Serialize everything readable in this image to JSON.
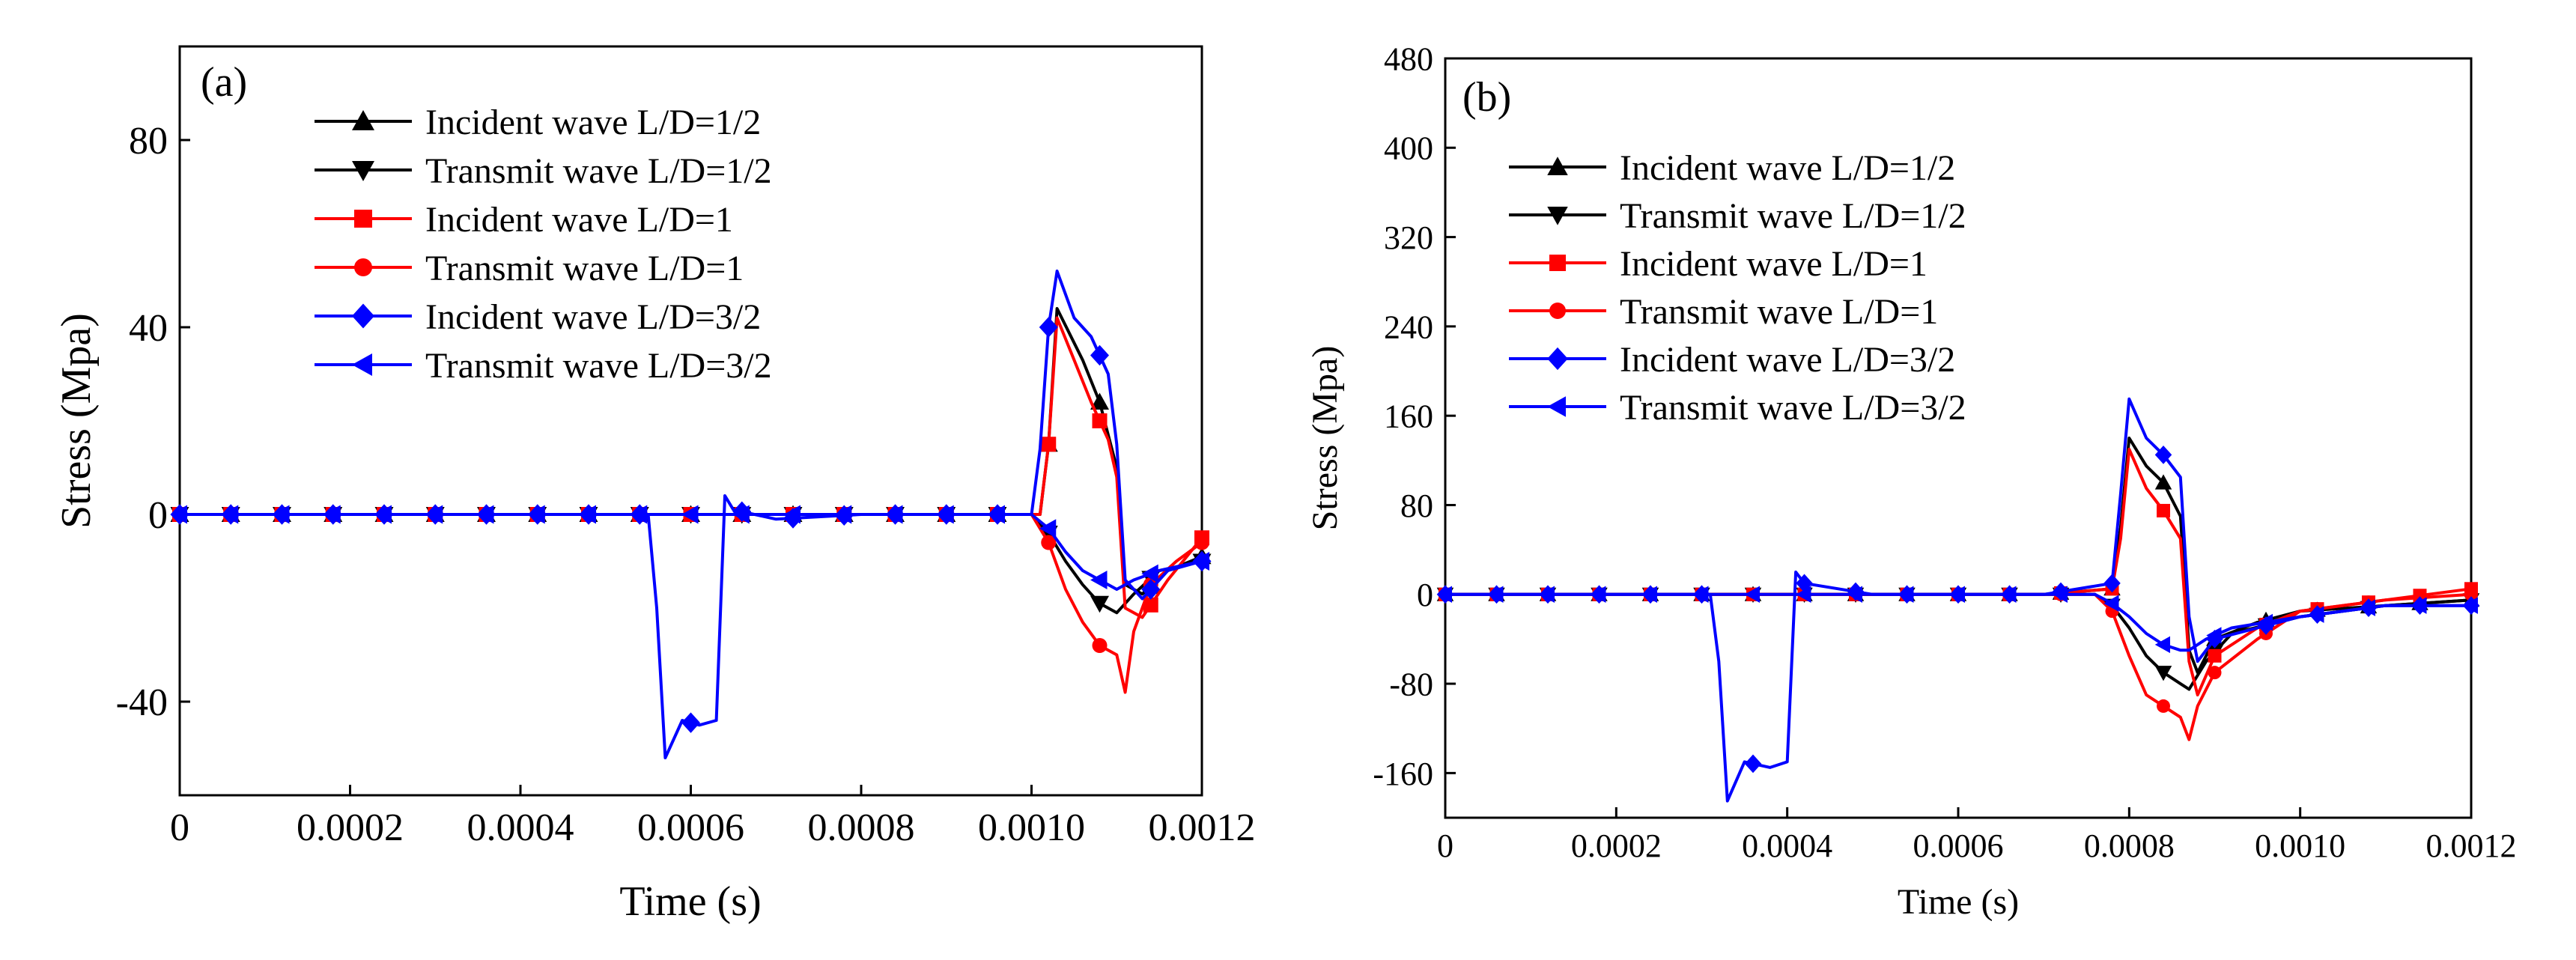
{
  "chart_data": [
    {
      "type": "line",
      "panel_label": "(a)",
      "xlabel": "Time (s)",
      "ylabel": "Stress (Mpa)",
      "xlim": [
        0,
        0.0012
      ],
      "ylim": [
        -60,
        100
      ],
      "xticks": [
        0,
        0.0002,
        0.0004,
        0.0006,
        0.0008,
        0.001,
        0.0012
      ],
      "xtick_labels": [
        "0",
        "0.0002",
        "0.0004",
        "0.0006",
        "0.0008",
        "0.0010",
        "0.0012"
      ],
      "yticks": [
        -40,
        0,
        40,
        80
      ],
      "ytick_labels": [
        "-40",
        "0",
        "40",
        "80"
      ],
      "legend": "top-left",
      "series": [
        {
          "name": "Incident wave L/D=1/2",
          "color": "#000000",
          "marker": "triangle-up",
          "x": [
            0,
            0.0006,
            0.00095,
            0.00101,
            0.00102,
            0.00103,
            0.00106,
            0.00108,
            0.0011,
            0.00111,
            0.00113,
            0.00116,
            0.0012
          ],
          "y": [
            0,
            0,
            0,
            0,
            15,
            44,
            33,
            24,
            10,
            -15,
            -17,
            -12,
            -9
          ]
        },
        {
          "name": "Transmit wave L/D=1/2",
          "color": "#000000",
          "marker": "triangle-down",
          "x": [
            0,
            0.0009,
            0.001,
            0.00102,
            0.00104,
            0.00106,
            0.00108,
            0.0011,
            0.00112,
            0.00115,
            0.0012
          ],
          "y": [
            0,
            0,
            0,
            -4,
            -10,
            -15,
            -19,
            -21,
            -17,
            -12,
            -10
          ]
        },
        {
          "name": "Incident wave L/D=1",
          "color": "#ff0000",
          "marker": "square",
          "x": [
            0,
            0.0006,
            0.00095,
            0.00101,
            0.00102,
            0.00103,
            0.00105,
            0.00107,
            0.00109,
            0.0011,
            0.00111,
            0.00113,
            0.00116,
            0.0012
          ],
          "y": [
            0,
            0,
            0,
            0,
            15,
            42,
            33,
            24,
            16,
            8,
            -20,
            -22,
            -14,
            -5
          ]
        },
        {
          "name": "Transmit wave L/D=1",
          "color": "#ff0000",
          "marker": "circle",
          "x": [
            0,
            0.0009,
            0.001,
            0.00102,
            0.00104,
            0.00106,
            0.00108,
            0.0011,
            0.00111,
            0.00112,
            0.00114,
            0.00117,
            0.0012
          ],
          "y": [
            0,
            0,
            0,
            -6,
            -16,
            -23,
            -28,
            -30,
            -38,
            -25,
            -15,
            -10,
            -6
          ]
        },
        {
          "name": "Incident wave L/D=3/2",
          "color": "#0000ff",
          "marker": "diamond",
          "x": [
            0,
            0.00055,
            0.00056,
            0.00057,
            0.00059,
            0.00061,
            0.00063,
            0.00064,
            0.00065,
            0.0007,
            0.0008,
            0.001,
            0.00101,
            0.00102,
            0.00103,
            0.00105,
            0.00107,
            0.00109,
            0.0011,
            0.00111,
            0.00113,
            0.00116,
            0.0012
          ],
          "y": [
            0,
            0,
            -20,
            -52,
            -44,
            -45,
            -44,
            4,
            1,
            -1,
            0,
            0,
            14,
            40,
            52,
            42,
            38,
            30,
            15,
            -14,
            -18,
            -12,
            -10
          ]
        },
        {
          "name": "Transmit wave L/D=3/2",
          "color": "#0000ff",
          "marker": "triangle-left",
          "x": [
            0,
            0.0009,
            0.001,
            0.00102,
            0.00104,
            0.00106,
            0.00108,
            0.0011,
            0.00112,
            0.00115,
            0.0012
          ],
          "y": [
            0,
            0,
            0,
            -3,
            -8,
            -12,
            -14,
            -16,
            -14,
            -12,
            -10
          ]
        }
      ]
    },
    {
      "type": "line",
      "panel_label": "(b)",
      "xlabel": "Time (s)",
      "ylabel": "Stress (Mpa)",
      "xlim": [
        0,
        0.0012
      ],
      "ylim": [
        -200,
        480
      ],
      "xticks": [
        0,
        0.0002,
        0.0004,
        0.0006,
        0.0008,
        0.001,
        0.0012
      ],
      "xtick_labels": [
        "0",
        "0.0002",
        "0.0004",
        "0.0006",
        "0.0008",
        "0.0010",
        "0.0012"
      ],
      "yticks": [
        -160,
        -80,
        0,
        80,
        160,
        240,
        320,
        400,
        480
      ],
      "ytick_labels": [
        "-160",
        "-80",
        "0",
        "80",
        "160",
        "240",
        "320",
        "400",
        "480"
      ],
      "legend": "top-left",
      "series": [
        {
          "name": "Incident wave L/D=1/2",
          "color": "#000000",
          "marker": "triangle-up",
          "x": [
            0,
            0.0007,
            0.00078,
            0.00079,
            0.0008,
            0.00082,
            0.00084,
            0.00086,
            0.00087,
            0.00088,
            0.0009,
            0.00095,
            0.001,
            0.0011,
            0.0012
          ],
          "y": [
            0,
            0,
            5,
            60,
            140,
            115,
            100,
            70,
            -50,
            -70,
            -40,
            -25,
            -15,
            -10,
            -5
          ]
        },
        {
          "name": "Transmit wave L/D=1/2",
          "color": "#000000",
          "marker": "triangle-down",
          "x": [
            0,
            0.00076,
            0.00078,
            0.0008,
            0.00082,
            0.00084,
            0.00086,
            0.00087,
            0.00089,
            0.00092,
            0.001,
            0.0011,
            0.0012
          ],
          "y": [
            0,
            0,
            -10,
            -30,
            -55,
            -70,
            -80,
            -85,
            -60,
            -35,
            -20,
            -10,
            -5
          ]
        },
        {
          "name": "Incident wave L/D=1",
          "color": "#ff0000",
          "marker": "square",
          "x": [
            0,
            0.0007,
            0.00078,
            0.00079,
            0.0008,
            0.00082,
            0.00084,
            0.00086,
            0.00087,
            0.00088,
            0.0009,
            0.00095,
            0.001,
            0.0011,
            0.0012
          ],
          "y": [
            0,
            0,
            5,
            50,
            130,
            95,
            75,
            50,
            -60,
            -90,
            -55,
            -30,
            -15,
            -5,
            5
          ]
        },
        {
          "name": "Transmit wave L/D=1",
          "color": "#ff0000",
          "marker": "circle",
          "x": [
            0,
            0.00076,
            0.00078,
            0.0008,
            0.00082,
            0.00084,
            0.00086,
            0.00087,
            0.00088,
            0.0009,
            0.00095,
            0.001,
            0.0011,
            0.0012
          ],
          "y": [
            0,
            0,
            -15,
            -55,
            -90,
            -100,
            -110,
            -130,
            -100,
            -70,
            -40,
            -15,
            -5,
            0
          ]
        },
        {
          "name": "Incident wave L/D=3/2",
          "color": "#0000ff",
          "marker": "diamond",
          "x": [
            0,
            0.00031,
            0.00032,
            0.00033,
            0.00035,
            0.00038,
            0.0004,
            0.00041,
            0.00042,
            0.0005,
            0.0007,
            0.00078,
            0.00079,
            0.0008,
            0.00082,
            0.00084,
            0.00086,
            0.00087,
            0.00088,
            0.0009,
            0.00095,
            0.001,
            0.0011,
            0.0012
          ],
          "y": [
            0,
            0,
            -60,
            -185,
            -150,
            -155,
            -150,
            20,
            10,
            0,
            0,
            10,
            90,
            175,
            140,
            125,
            105,
            -20,
            -60,
            -40,
            -30,
            -20,
            -10,
            -10
          ]
        },
        {
          "name": "Transmit wave L/D=3/2",
          "color": "#0000ff",
          "marker": "triangle-left",
          "x": [
            0,
            0.00076,
            0.00078,
            0.0008,
            0.00082,
            0.00084,
            0.00086,
            0.00087,
            0.00089,
            0.00092,
            0.001,
            0.0011,
            0.0012
          ],
          "y": [
            0,
            0,
            -8,
            -20,
            -35,
            -45,
            -50,
            -50,
            -40,
            -30,
            -20,
            -10,
            -10
          ]
        }
      ]
    }
  ]
}
